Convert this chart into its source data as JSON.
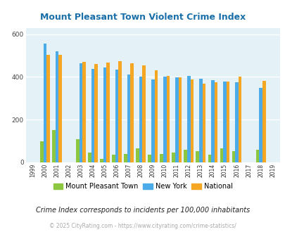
{
  "title": "Mount Pleasant Town Violent Crime Index",
  "subtitle": "Crime Index corresponds to incidents per 100,000 inhabitants",
  "footer": "© 2025 CityRating.com - https://www.cityrating.com/crime-statistics/",
  "years": [
    1999,
    2000,
    2001,
    2002,
    2003,
    2004,
    2005,
    2006,
    2007,
    2008,
    2009,
    2010,
    2011,
    2012,
    2013,
    2014,
    2015,
    2016,
    2017,
    2018,
    2019
  ],
  "mount_pleasant": [
    0,
    100,
    150,
    0,
    110,
    45,
    18,
    35,
    40,
    65,
    35,
    38,
    45,
    60,
    52,
    35,
    65,
    52,
    0,
    60,
    0
  ],
  "new_york": [
    0,
    555,
    520,
    0,
    465,
    438,
    443,
    435,
    410,
    400,
    388,
    400,
    398,
    405,
    392,
    385,
    380,
    375,
    0,
    350,
    0
  ],
  "national": [
    0,
    505,
    505,
    0,
    470,
    462,
    469,
    473,
    465,
    455,
    430,
    404,
    399,
    390,
    368,
    375,
    380,
    400,
    0,
    383,
    0
  ],
  "color_mount_pleasant": "#8dc63f",
  "color_new_york": "#4baae8",
  "color_national": "#f5a623",
  "bg_color": "#e4f2f7",
  "title_color": "#1a6fa8",
  "subtitle_color": "#222222",
  "footer_color": "#aaaaaa",
  "ylim": [
    0,
    630
  ],
  "yticks": [
    0,
    200,
    400,
    600
  ],
  "bar_width": 0.27
}
